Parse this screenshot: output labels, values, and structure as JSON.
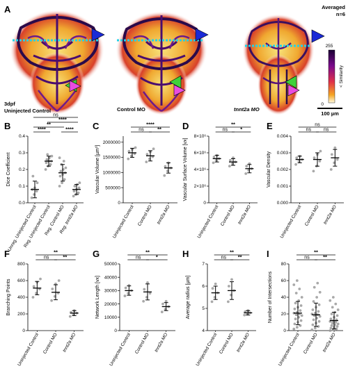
{
  "image_panel": {
    "letter": "A",
    "labels": [
      "3dpf",
      "Uninjected Control",
      "Control MO",
      "tnnt2a MO"
    ],
    "averaged_label": "Averaged",
    "n_label": "n=6",
    "colorbar": {
      "top": "255",
      "bottom": "0",
      "title": "< Similarity"
    },
    "scale_bar": "100 µm"
  },
  "chart_data": [
    {
      "panel": "B",
      "type": "scatter",
      "ylabel": "Dice Coefficient",
      "ylim": [
        0,
        0.4
      ],
      "yticks": [
        "0.0",
        "0.1",
        "0.2",
        "0.3",
        "0.4"
      ],
      "ytick_values": [
        0,
        0.1,
        0.2,
        0.3,
        0.4
      ],
      "categories": [
        "Unreg. Uninjected Control",
        "Reg. Uninjected Control",
        "Reg. Control MO",
        "Reg. tnnt2a MO"
      ],
      "means": [
        0.08,
        0.25,
        0.18,
        0.08
      ],
      "sds": [
        0.05,
        0.03,
        0.05,
        0.03
      ],
      "points": [
        [
          0.03,
          0.05,
          0.07,
          0.08,
          0.09,
          0.12,
          0.16
        ],
        [
          0.2,
          0.22,
          0.23,
          0.24,
          0.25,
          0.25,
          0.26,
          0.27,
          0.28,
          0.29
        ],
        [
          0.1,
          0.12,
          0.14,
          0.16,
          0.17,
          0.18,
          0.19,
          0.2,
          0.21,
          0.23,
          0.25,
          0.27
        ],
        [
          0.04,
          0.05,
          0.06,
          0.07,
          0.08,
          0.09,
          0.1,
          0.11,
          0.12
        ]
      ],
      "comparisons": [
        {
          "from": 0,
          "to": 1,
          "label": "****"
        },
        {
          "from": 2,
          "to": 3,
          "label": "****"
        },
        {
          "from": 0,
          "to": 2,
          "label": "**"
        },
        {
          "from": 1,
          "to": 3,
          "label": "****"
        },
        {
          "from": 0,
          "to": 3,
          "label": "ns"
        }
      ]
    },
    {
      "panel": "C",
      "type": "scatter",
      "ylabel": "Vascular Volume [µm³]",
      "ylim": [
        0,
        2200000
      ],
      "yticks": [
        "0",
        "500000",
        "1000000",
        "1500000",
        "2000000"
      ],
      "ytick_values": [
        0,
        500000,
        1000000,
        1500000,
        2000000
      ],
      "categories": [
        "Uninjected Control",
        "Control MO",
        "tnnt2a MO"
      ],
      "means": [
        1650000,
        1550000,
        1150000
      ],
      "sds": [
        150000,
        170000,
        170000
      ],
      "points": [
        [
          1450000,
          1550000,
          1620000,
          1700000,
          1760000,
          1820000
        ],
        [
          1350000,
          1450000,
          1520000,
          1600000,
          1680000,
          1780000
        ],
        [
          900000,
          1050000,
          1150000,
          1200000,
          1320000
        ]
      ],
      "comparisons": [
        {
          "from": 0,
          "to": 1,
          "label": "ns"
        },
        {
          "from": 1,
          "to": 2,
          "label": "**"
        },
        {
          "from": 0,
          "to": 2,
          "label": "****"
        }
      ]
    },
    {
      "panel": "D",
      "type": "scatter",
      "ylabel": "Vascular Surface Volume [vx]",
      "ylim": [
        0,
        8000000
      ],
      "yticks": [
        "0",
        "2×10⁶",
        "4×10⁶",
        "6×10⁶",
        "8×10⁶"
      ],
      "ytick_values": [
        0,
        2000000,
        4000000,
        6000000,
        8000000
      ],
      "categories": [
        "Uninjected Control",
        "Control MO",
        "tnnt2a MO"
      ],
      "means": [
        5300000,
        4900000,
        4100000
      ],
      "sds": [
        400000,
        400000,
        500000
      ],
      "points": [
        [
          4800000,
          5100000,
          5300000,
          5500000,
          5700000
        ],
        [
          4400000,
          4700000,
          4900000,
          5100000,
          5400000
        ],
        [
          3500000,
          3900000,
          4100000,
          4400000,
          4700000
        ]
      ],
      "comparisons": [
        {
          "from": 0,
          "to": 1,
          "label": "ns"
        },
        {
          "from": 1,
          "to": 2,
          "label": "*"
        },
        {
          "from": 0,
          "to": 2,
          "label": "**"
        }
      ]
    },
    {
      "panel": "E",
      "type": "scatter",
      "ylabel": "Vascular Density",
      "ylim": [
        0,
        0.004
      ],
      "yticks": [
        "0.000",
        "0.001",
        "0.002",
        "0.003",
        "0.004"
      ],
      "ytick_values": [
        0,
        0.001,
        0.002,
        0.003,
        0.004
      ],
      "categories": [
        "Uninjected Control",
        "Control MO",
        "tnnt2a MO"
      ],
      "means": [
        0.0026,
        0.0026,
        0.0027
      ],
      "sds": [
        0.0002,
        0.0004,
        0.0005
      ],
      "points": [
        [
          0.0023,
          0.0025,
          0.0026,
          0.0027,
          0.0028
        ],
        [
          0.0019,
          0.0022,
          0.0025,
          0.0027,
          0.0029,
          0.0031
        ],
        [
          0.002,
          0.0024,
          0.0026,
          0.0029,
          0.0033
        ]
      ],
      "comparisons": [
        {
          "from": 0,
          "to": 1,
          "label": "ns"
        },
        {
          "from": 1,
          "to": 2,
          "label": "ns"
        },
        {
          "from": 0,
          "to": 2,
          "label": "ns"
        }
      ]
    },
    {
      "panel": "F",
      "type": "scatter",
      "ylabel": "Branching Points",
      "ylim": [
        0,
        800
      ],
      "yticks": [
        "0",
        "200",
        "400",
        "600",
        "800"
      ],
      "ytick_values": [
        0,
        200,
        400,
        600,
        800
      ],
      "categories": [
        "Uninjected Control",
        "Control MO",
        "tnnt2a MO"
      ],
      "means": [
        510,
        460,
        210
      ],
      "sds": [
        80,
        90,
        30
      ],
      "points": [
        [
          400,
          450,
          500,
          530,
          580,
          620
        ],
        [
          360,
          410,
          450,
          500,
          560,
          600
        ],
        [
          170,
          190,
          210,
          220,
          240
        ]
      ],
      "comparisons": [
        {
          "from": 0,
          "to": 1,
          "label": "ns"
        },
        {
          "from": 1,
          "to": 2,
          "label": "**"
        },
        {
          "from": 0,
          "to": 2,
          "label": "**"
        }
      ]
    },
    {
      "panel": "G",
      "type": "scatter",
      "ylabel": "Network Length [vx]",
      "ylim": [
        0,
        50000
      ],
      "yticks": [
        "0",
        "10000",
        "20000",
        "30000",
        "40000",
        "50000"
      ],
      "ytick_values": [
        0,
        10000,
        20000,
        30000,
        40000,
        50000
      ],
      "categories": [
        "Uninjected Control",
        "Control MO",
        "tnnt2a MO"
      ],
      "means": [
        30000,
        29000,
        18000
      ],
      "sds": [
        3500,
        6000,
        3000
      ],
      "points": [
        [
          26000,
          28000,
          30000,
          32000,
          34000
        ],
        [
          22000,
          25000,
          28000,
          31000,
          36000
        ],
        [
          14000,
          16000,
          18000,
          20000,
          22000
        ]
      ],
      "comparisons": [
        {
          "from": 0,
          "to": 1,
          "label": "ns"
        },
        {
          "from": 1,
          "to": 2,
          "label": "*"
        },
        {
          "from": 0,
          "to": 2,
          "label": "**"
        }
      ]
    },
    {
      "panel": "H",
      "type": "scatter",
      "ylabel": "Average radius [µm]",
      "ylim": [
        4,
        7
      ],
      "yticks": [
        "4",
        "5",
        "6",
        "7"
      ],
      "ytick_values": [
        4,
        5,
        6,
        7
      ],
      "categories": [
        "Uninjected Control",
        "Control MO",
        "tnnt2a MO"
      ],
      "means": [
        5.7,
        5.8,
        4.8
      ],
      "sds": [
        0.3,
        0.4,
        0.1
      ],
      "points": [
        [
          5.3,
          5.5,
          5.7,
          5.9,
          6.1
        ],
        [
          5.3,
          5.6,
          5.8,
          6.0,
          6.3
        ],
        [
          4.7,
          4.75,
          4.8,
          4.85,
          4.9
        ]
      ],
      "comparisons": [
        {
          "from": 0,
          "to": 1,
          "label": "ns"
        },
        {
          "from": 1,
          "to": 2,
          "label": "**"
        },
        {
          "from": 0,
          "to": 2,
          "label": "**"
        }
      ]
    },
    {
      "panel": "I",
      "type": "scatter",
      "ylabel": "Number of Intersections",
      "ylim": [
        0,
        80
      ],
      "yticks": [
        "0",
        "20",
        "40",
        "60",
        "80"
      ],
      "ytick_values": [
        0,
        20,
        40,
        60,
        80
      ],
      "categories": [
        "Uninjected Control",
        "Control MO",
        "tnnt2a MO"
      ],
      "means": [
        21,
        19,
        12
      ],
      "sds": [
        14,
        14,
        10
      ],
      "points": [
        [
          2,
          4,
          6,
          8,
          10,
          12,
          14,
          16,
          18,
          19,
          20,
          21,
          22,
          24,
          26,
          28,
          30,
          33,
          36,
          40,
          45,
          50,
          55,
          60
        ],
        [
          1,
          3,
          5,
          7,
          9,
          11,
          13,
          15,
          17,
          18,
          19,
          20,
          21,
          23,
          25,
          28,
          31,
          35,
          40,
          46,
          52,
          57
        ],
        [
          0,
          1,
          2,
          3,
          4,
          5,
          6,
          7,
          8,
          9,
          10,
          11,
          12,
          13,
          14,
          16,
          18,
          20,
          22,
          25,
          28,
          32,
          36,
          40
        ]
      ],
      "comparisons": [
        {
          "from": 0,
          "to": 1,
          "label": "ns"
        },
        {
          "from": 1,
          "to": 2,
          "label": "**"
        },
        {
          "from": 0,
          "to": 2,
          "label": "**"
        }
      ]
    }
  ]
}
